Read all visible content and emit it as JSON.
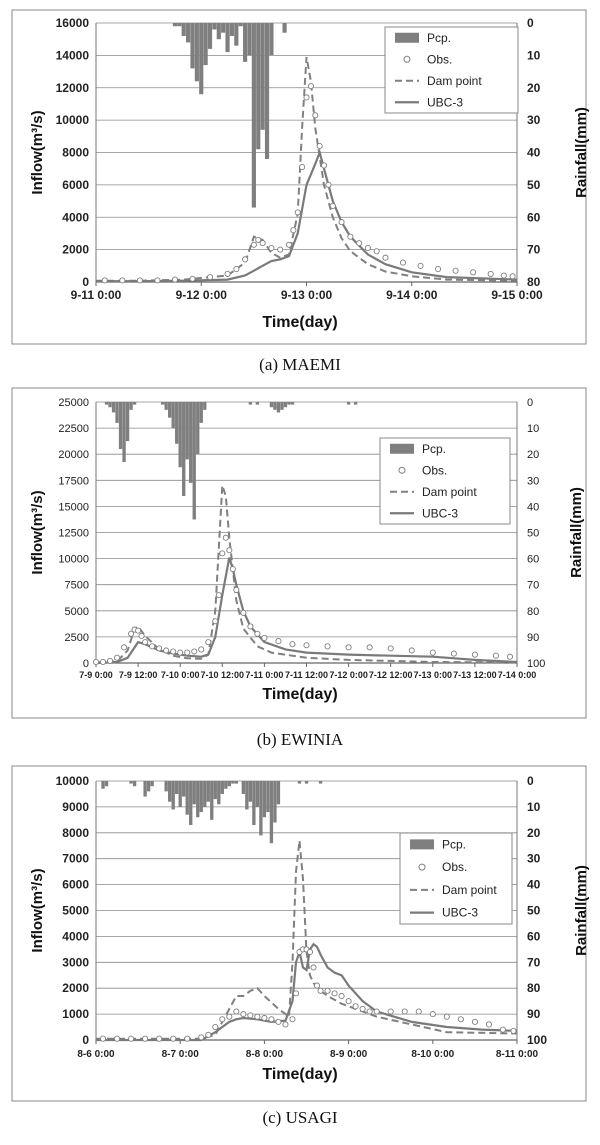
{
  "chart_data": [
    {
      "type": "line",
      "caption": "(a) MAEMI",
      "xlabel": "Time(day)",
      "ylabel": "Inflow(m³/s)",
      "y2label": "Rainfall(mm)",
      "xlim": [
        0,
        96
      ],
      "ylim": [
        0,
        16000
      ],
      "y2lim": [
        0,
        80
      ],
      "y2_inverted": true,
      "xticks": [
        {
          "x": 0,
          "label": "9-11 0:00"
        },
        {
          "x": 24,
          "label": "9-12 0:00"
        },
        {
          "x": 48,
          "label": "9-13 0:00"
        },
        {
          "x": 72,
          "label": "9-14 0:00"
        },
        {
          "x": 96,
          "label": "9-15 0:00"
        }
      ],
      "yticks": [
        0,
        2000,
        4000,
        6000,
        8000,
        10000,
        12000,
        14000,
        16000
      ],
      "y2ticks": [
        0,
        10,
        20,
        30,
        40,
        50,
        60,
        70,
        80
      ],
      "legend_entries": [
        "Pcp.",
        "Obs.",
        "Dam point",
        "UBC-3"
      ],
      "legend_placement": "top-right",
      "grid": "horizontal",
      "rainfall": {
        "name": "Pcp.",
        "x": [
          18,
          19,
          20,
          21,
          22,
          23,
          24,
          25,
          26,
          27,
          28,
          29,
          30,
          31,
          32,
          33,
          34,
          35,
          36,
          37,
          38,
          39,
          40,
          43
        ],
        "values": [
          1,
          1,
          4,
          6,
          14,
          18,
          22,
          13,
          8,
          2,
          5,
          3,
          9,
          4,
          7,
          1,
          12,
          10,
          57,
          39,
          33,
          42,
          10,
          3
        ]
      },
      "observed": {
        "name": "Obs.",
        "x": [
          2,
          6,
          10,
          14,
          18,
          22,
          26,
          30,
          32,
          34,
          36,
          37,
          38,
          40,
          42,
          44,
          45,
          46,
          47,
          48,
          49,
          50,
          51,
          52,
          53,
          54,
          56,
          58,
          60,
          62,
          64,
          66,
          70,
          74,
          78,
          82,
          86,
          90,
          93,
          95
        ],
        "values": [
          100,
          100,
          100,
          100,
          150,
          200,
          300,
          500,
          800,
          1400,
          2300,
          2600,
          2400,
          2100,
          2000,
          2300,
          3200,
          4300,
          7100,
          11400,
          12100,
          10300,
          8400,
          7200,
          6000,
          4700,
          3700,
          2800,
          2400,
          2100,
          1900,
          1500,
          1200,
          1000,
          800,
          700,
          600,
          500,
          400,
          350
        ]
      },
      "series": [
        {
          "name": "Dam point",
          "x": [
            0,
            10,
            20,
            30,
            34,
            36,
            38,
            40,
            42,
            44,
            46,
            47,
            48,
            49,
            50,
            52,
            54,
            56,
            58,
            62,
            66,
            72,
            80,
            96
          ],
          "values": [
            80,
            80,
            150,
            400,
            1200,
            2800,
            2600,
            1800,
            1500,
            1700,
            4200,
            9500,
            13900,
            12400,
            9500,
            6000,
            4000,
            2700,
            1900,
            1100,
            650,
            350,
            150,
            80
          ]
        },
        {
          "name": "UBC-3",
          "x": [
            0,
            10,
            20,
            30,
            34,
            36,
            38,
            40,
            42,
            44,
            46,
            48,
            50,
            51,
            52,
            54,
            56,
            58,
            62,
            66,
            72,
            80,
            96
          ],
          "values": [
            50,
            50,
            80,
            150,
            400,
            700,
            1000,
            1300,
            1400,
            1600,
            3000,
            6000,
            7300,
            8000,
            7000,
            5000,
            3700,
            2800,
            1700,
            1100,
            600,
            300,
            150
          ]
        }
      ]
    },
    {
      "type": "line",
      "caption": "(b) EWINIA",
      "xlabel": "Time(day)",
      "ylabel": "Inflow(m³/s)",
      "y2label": "Rainfall(mm)",
      "xlim": [
        0,
        120
      ],
      "ylim": [
        0,
        25000
      ],
      "y2lim": [
        0,
        100
      ],
      "y2_inverted": true,
      "xticks": [
        {
          "x": 0,
          "label": "7-9 0:00"
        },
        {
          "x": 12,
          "label": "7-9 12:00"
        },
        {
          "x": 24,
          "label": "7-10 0:00"
        },
        {
          "x": 36,
          "label": "7-10 12:00"
        },
        {
          "x": 48,
          "label": "7-11 0:00"
        },
        {
          "x": 60,
          "label": "7-11 12:00"
        },
        {
          "x": 72,
          "label": "7-12 0:00"
        },
        {
          "x": 84,
          "label": "7-12 12:00"
        },
        {
          "x": 96,
          "label": "7-13 0:00"
        },
        {
          "x": 108,
          "label": "7-13 12:00"
        },
        {
          "x": 120,
          "label": "7-14 0:00"
        }
      ],
      "yticks": [
        0,
        2500,
        5000,
        7500,
        10000,
        12500,
        15000,
        17500,
        20000,
        22500,
        25000
      ],
      "y2ticks": [
        0,
        10,
        20,
        30,
        40,
        50,
        60,
        70,
        80,
        90,
        100
      ],
      "legend_entries": [
        "Pcp.",
        "Obs.",
        "Dam point",
        "UBC-3"
      ],
      "legend_placement": "right",
      "grid": "horizontal",
      "rainfall": {
        "name": "Pcp.",
        "x": [
          3,
          4,
          5,
          6,
          7,
          8,
          9,
          10,
          11,
          19,
          20,
          21,
          22,
          23,
          24,
          25,
          26,
          27,
          28,
          29,
          30,
          31,
          44,
          46,
          50,
          51,
          52,
          53,
          54,
          55,
          56,
          72,
          74
        ],
        "values": [
          1,
          2,
          4,
          8,
          18,
          23,
          15,
          3,
          1,
          1,
          3,
          6,
          10,
          16,
          25,
          36,
          22,
          31,
          45,
          20,
          8,
          3,
          1,
          1,
          2,
          3,
          4,
          3,
          2,
          1,
          1,
          1,
          1
        ]
      },
      "observed": {
        "name": "Obs.",
        "x": [
          0,
          2,
          4,
          6,
          8,
          10,
          11,
          12,
          13,
          14,
          16,
          18,
          20,
          22,
          24,
          26,
          28,
          30,
          32,
          34,
          35,
          36,
          37,
          38,
          39,
          40,
          42,
          44,
          46,
          48,
          52,
          56,
          60,
          66,
          72,
          78,
          84,
          90,
          96,
          102,
          108,
          114,
          118
        ],
        "values": [
          100,
          100,
          200,
          500,
          1500,
          2800,
          3200,
          3100,
          2600,
          2000,
          1600,
          1400,
          1200,
          1100,
          1000,
          1000,
          1100,
          1300,
          2000,
          4000,
          6500,
          10500,
          12000,
          10800,
          9000,
          7000,
          4800,
          3500,
          2800,
          2400,
          2100,
          1800,
          1700,
          1600,
          1500,
          1500,
          1400,
          1200,
          1000,
          900,
          800,
          700,
          600
        ]
      },
      "series": [
        {
          "name": "Dam point",
          "x": [
            0,
            6,
            9,
            11,
            12,
            14,
            18,
            22,
            26,
            30,
            32,
            34,
            35,
            36,
            37,
            38,
            40,
            42,
            46,
            50,
            60,
            72,
            84,
            96,
            120
          ],
          "values": [
            50,
            150,
            1200,
            3300,
            3500,
            2600,
            1300,
            700,
            450,
            400,
            800,
            5000,
            11000,
            17000,
            16000,
            12000,
            6000,
            3300,
            1600,
            1000,
            500,
            300,
            200,
            100,
            50
          ]
        },
        {
          "name": "UBC-3",
          "x": [
            0,
            6,
            9,
            12,
            14,
            18,
            22,
            26,
            30,
            32,
            34,
            36,
            37,
            38,
            39,
            40,
            42,
            44,
            48,
            54,
            60,
            72,
            84,
            96,
            108,
            120
          ],
          "values": [
            0,
            100,
            500,
            2000,
            1800,
            1200,
            900,
            700,
            600,
            800,
            2500,
            6500,
            8300,
            10100,
            9000,
            7500,
            5000,
            3500,
            2000,
            1300,
            1000,
            800,
            700,
            600,
            300,
            100
          ]
        }
      ]
    },
    {
      "type": "line",
      "caption": "(c) USAGI",
      "xlabel": "Time(day)",
      "ylabel": "Inflow(m³/s)",
      "y2label": "Rainfall(mm)",
      "xlim": [
        0,
        120
      ],
      "ylim": [
        0,
        10000
      ],
      "y2lim": [
        0,
        100
      ],
      "y2_inverted": true,
      "xticks": [
        {
          "x": 0,
          "label": "8-6 0:00"
        },
        {
          "x": 24,
          "label": "8-7 0:00"
        },
        {
          "x": 48,
          "label": "8-8 0:00"
        },
        {
          "x": 72,
          "label": "8-9 0:00"
        },
        {
          "x": 96,
          "label": "8-10 0:00"
        },
        {
          "x": 120,
          "label": "8-11 0:00"
        }
      ],
      "yticks": [
        0,
        1000,
        2000,
        3000,
        4000,
        5000,
        6000,
        7000,
        8000,
        9000,
        10000
      ],
      "y2ticks": [
        0,
        10,
        20,
        30,
        40,
        50,
        60,
        70,
        80,
        90,
        100
      ],
      "legend_entries": [
        "Pcp.",
        "Obs.",
        "Dam point",
        "UBC-3"
      ],
      "legend_placement": "right",
      "grid": "horizontal",
      "rainfall": {
        "name": "Pcp.",
        "x": [
          2,
          3,
          10,
          11,
          14,
          15,
          16,
          20,
          21,
          22,
          23,
          24,
          25,
          26,
          27,
          28,
          29,
          30,
          31,
          32,
          33,
          34,
          35,
          36,
          37,
          38,
          39,
          40,
          42,
          43,
          44,
          45,
          46,
          47,
          48,
          49,
          50,
          51,
          52,
          58,
          60,
          64
        ],
        "values": [
          3,
          2,
          1,
          2,
          6,
          4,
          2,
          4,
          8,
          11,
          5,
          10,
          6,
          13,
          17,
          9,
          14,
          12,
          10,
          8,
          15,
          7,
          9,
          5,
          3,
          2,
          1,
          1,
          5,
          11,
          8,
          17,
          10,
          21,
          14,
          12,
          24,
          16,
          9,
          1,
          1,
          1
        ]
      },
      "observed": {
        "name": "Obs.",
        "x": [
          2,
          6,
          10,
          14,
          18,
          22,
          26,
          30,
          32,
          34,
          36,
          38,
          40,
          42,
          44,
          46,
          48,
          50,
          52,
          54,
          56,
          57,
          58,
          59,
          60,
          61,
          62,
          63,
          64,
          66,
          68,
          70,
          72,
          74,
          76,
          78,
          80,
          84,
          88,
          92,
          96,
          100,
          104,
          108,
          112,
          116,
          119
        ],
        "values": [
          50,
          50,
          50,
          50,
          50,
          50,
          50,
          100,
          200,
          500,
          800,
          900,
          1100,
          1000,
          950,
          900,
          850,
          800,
          700,
          600,
          800,
          1800,
          3400,
          3500,
          3500,
          3400,
          2800,
          2100,
          1900,
          1900,
          1800,
          1700,
          1500,
          1300,
          1200,
          1100,
          1100,
          1100,
          1100,
          1100,
          1000,
          900,
          800,
          700,
          600,
          400,
          350
        ]
      },
      "series": [
        {
          "name": "Dam point",
          "x": [
            0,
            20,
            30,
            34,
            38,
            40,
            42,
            44,
            46,
            48,
            52,
            55,
            56,
            57,
            58,
            59,
            60,
            61,
            62,
            64,
            66,
            70,
            76,
            80,
            90,
            100,
            120
          ],
          "values": [
            50,
            50,
            50,
            200,
            1200,
            1700,
            1700,
            1900,
            2000,
            1700,
            1200,
            900,
            3000,
            6500,
            7700,
            6200,
            3400,
            2500,
            2200,
            1900,
            1700,
            1400,
            1100,
            900,
            600,
            300,
            250
          ]
        },
        {
          "name": "UBC-3",
          "x": [
            0,
            20,
            30,
            34,
            36,
            38,
            40,
            42,
            46,
            50,
            54,
            56,
            57,
            58,
            59,
            60,
            61,
            62,
            63,
            64,
            66,
            68,
            70,
            72,
            76,
            80,
            90,
            100,
            110,
            120
          ],
          "values": [
            0,
            0,
            0,
            300,
            500,
            700,
            800,
            850,
            800,
            700,
            750,
            1500,
            3000,
            3400,
            2800,
            2700,
            3500,
            3700,
            3600,
            3300,
            2800,
            2600,
            2500,
            2100,
            1500,
            1100,
            700,
            500,
            400,
            350
          ]
        }
      ]
    }
  ]
}
